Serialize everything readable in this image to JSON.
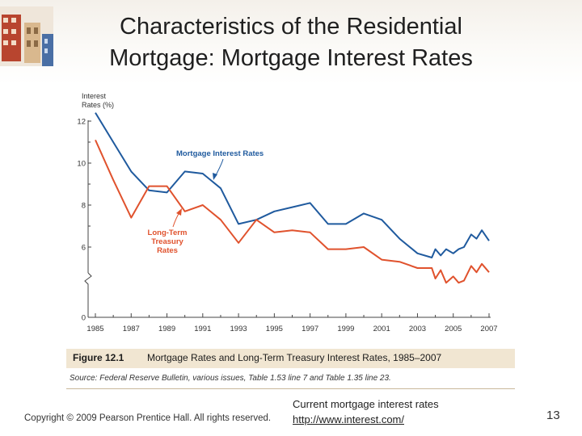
{
  "slide": {
    "title_line1": "Characteristics of the Residential",
    "title_line2": "Mortgage: Mortgage Interest Rates",
    "copyright": "Copyright © 2009 Pearson Prentice Hall. All rights reserved.",
    "link_label": "Current mortgage interest rates",
    "link_url": "http://www.interest.com/",
    "page_number": "13"
  },
  "figure": {
    "label": "Figure 12.1",
    "caption": "Mortgage Rates and Long-Term Treasury Interest Rates, 1985–2007",
    "source": "Source: Federal Reserve Bulletin, various issues, Table 1.53 line 7 and Table 1.35 line 23."
  },
  "chart_data": {
    "type": "line",
    "ylabel_line1": "Interest",
    "ylabel_line2": "Rates (%)",
    "xlim": [
      1985,
      2007
    ],
    "ylim": [
      0,
      12
    ],
    "axis_break": true,
    "x_ticks": [
      "1985",
      "1987",
      "1989",
      "1991",
      "1993",
      "1995",
      "1997",
      "1999",
      "2001",
      "2003",
      "2005",
      "2007"
    ],
    "y_ticks": [
      "0",
      "6",
      "8",
      "10",
      "12"
    ],
    "colors": {
      "mortgage": "#1f5a9e",
      "treasury": "#e0522d"
    },
    "series": [
      {
        "name": "Mortgage Interest Rates",
        "annotation_line1": "Mortgage Interest Rates",
        "x": [
          1985,
          1986,
          1987,
          1988,
          1989,
          1990,
          1991,
          1992,
          1993,
          1994,
          1995,
          1996,
          1997,
          1998,
          1999,
          2000,
          2001,
          2002,
          2003,
          2003.8,
          2004,
          2004.3,
          2004.6,
          2005,
          2005.3,
          2005.6,
          2006,
          2006.3,
          2006.6,
          2007
        ],
        "y": [
          12.4,
          11.0,
          9.6,
          8.7,
          8.6,
          9.6,
          9.5,
          8.8,
          7.1,
          7.3,
          7.7,
          7.9,
          8.1,
          7.1,
          7.1,
          7.6,
          7.3,
          6.4,
          5.7,
          5.5,
          5.9,
          5.6,
          5.9,
          5.7,
          5.9,
          6.0,
          6.6,
          6.4,
          6.8,
          6.3
        ]
      },
      {
        "name": "Long-Term Treasury Rates",
        "annotation_line1": "Long-Term",
        "annotation_line2": "Treasury",
        "annotation_line3": "Rates",
        "x": [
          1985,
          1986,
          1987,
          1988,
          1989,
          1990,
          1991,
          1992,
          1993,
          1994,
          1995,
          1996,
          1997,
          1998,
          1999,
          2000,
          2001,
          2002,
          2003,
          2003.8,
          2004,
          2004.3,
          2004.6,
          2005,
          2005.3,
          2005.6,
          2006,
          2006.3,
          2006.6,
          2007
        ],
        "y": [
          11.1,
          9.2,
          7.4,
          8.9,
          8.9,
          7.7,
          8.0,
          7.3,
          6.2,
          7.3,
          6.7,
          6.8,
          6.7,
          5.9,
          5.9,
          6.0,
          5.4,
          5.3,
          5.0,
          5.0,
          4.5,
          4.9,
          4.3,
          4.6,
          4.3,
          4.4,
          5.1,
          4.8,
          5.2,
          4.8
        ]
      }
    ]
  }
}
